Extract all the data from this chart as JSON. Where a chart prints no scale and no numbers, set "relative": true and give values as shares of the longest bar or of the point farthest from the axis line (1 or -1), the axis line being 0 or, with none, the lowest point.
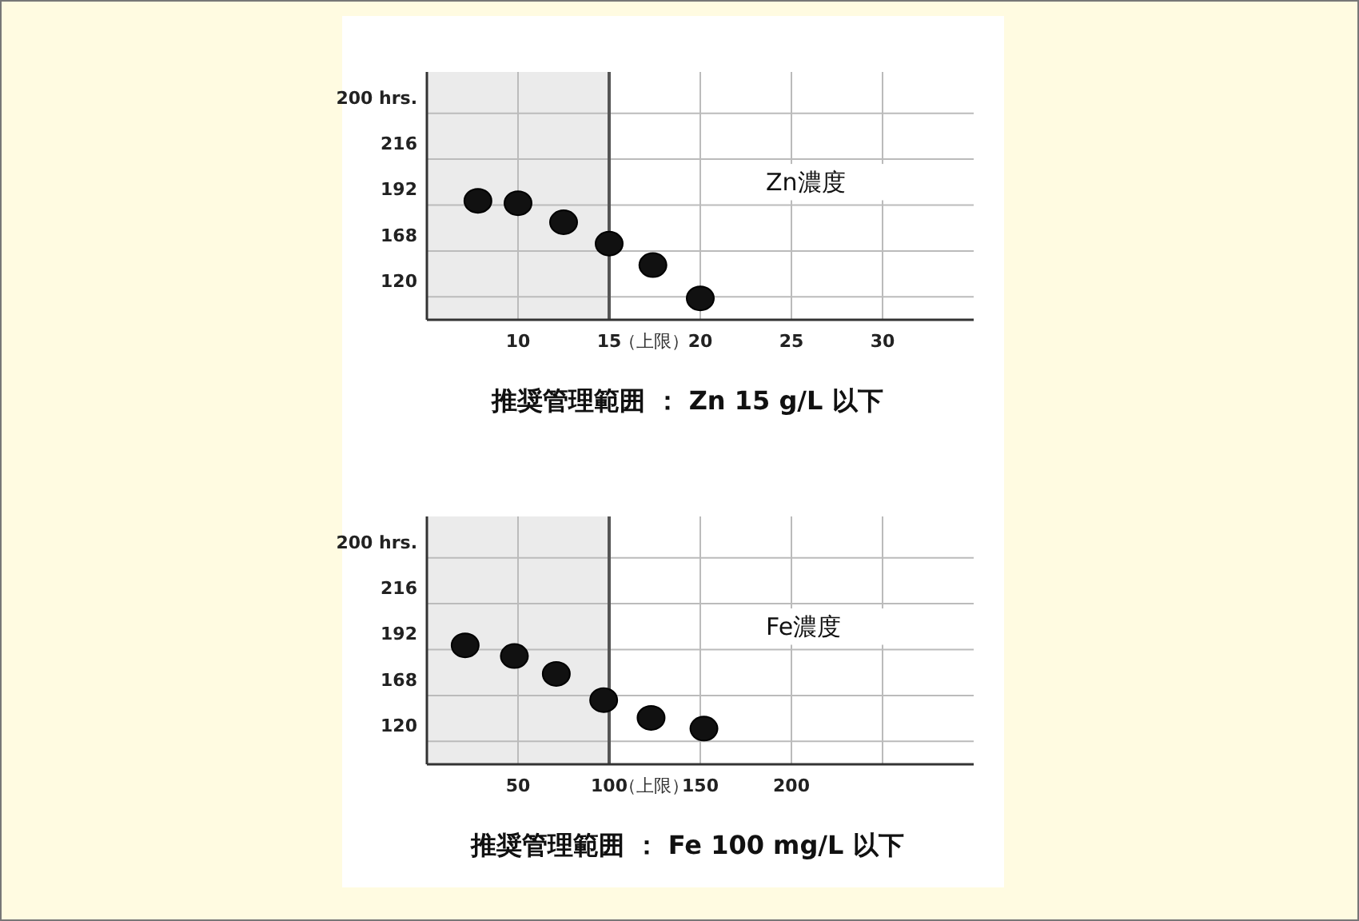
{
  "chart_data": [
    {
      "type": "scatter",
      "title": "推奨管理範囲 ： Zn 15 g/L 以下",
      "annotations": [
        "Zn濃度",
        "120",
        "168",
        "192",
        "216",
        "200 hrs."
      ],
      "x": [
        7.8,
        10,
        12.5,
        15,
        17.4,
        20
      ],
      "series": [
        {
          "color": "#111111",
          "values": [
            1,
            0.98,
            0.82,
            0.64,
            0.46,
            0.18
          ]
        }
      ],
      "relative": true,
      "xlim": [
        5,
        35
      ],
      "xticks": [
        10,
        15,
        20,
        25,
        30
      ],
      "bands": [
        {
          "axis": "x",
          "from": 5,
          "to": 15,
          "color": "#ebebeb"
        }
      ],
      "ref_lines": [
        {
          "axis": "x",
          "value": 15,
          "label": "（上限）",
          "color": "#555555"
        }
      ],
      "grid": true,
      "marker": "circle"
    },
    {
      "type": "scatter",
      "title": "推奨管理範囲 ： Fe 100 mg/L 以下",
      "annotations": [
        "Fe濃度",
        "120",
        "168",
        "192",
        "216",
        "200 hrs."
      ],
      "x": [
        21,
        48,
        71,
        97,
        123,
        152
      ],
      "series": [
        {
          "color": "#111111",
          "values": [
            1,
            0.91,
            0.76,
            0.54,
            0.39,
            0.3
          ]
        }
      ],
      "relative": true,
      "xlim": [
        0,
        300
      ],
      "xticks": [
        50,
        100,
        150,
        200,
        {
          "value": 250,
          "label": null
        }
      ],
      "bands": [
        {
          "axis": "x",
          "from": 0,
          "to": 100,
          "color": "#ebebeb"
        }
      ],
      "ref_lines": [
        {
          "axis": "x",
          "value": 100,
          "label": "（上限）",
          "color": "#555555"
        }
      ],
      "grid": true,
      "marker": "circle"
    }
  ]
}
